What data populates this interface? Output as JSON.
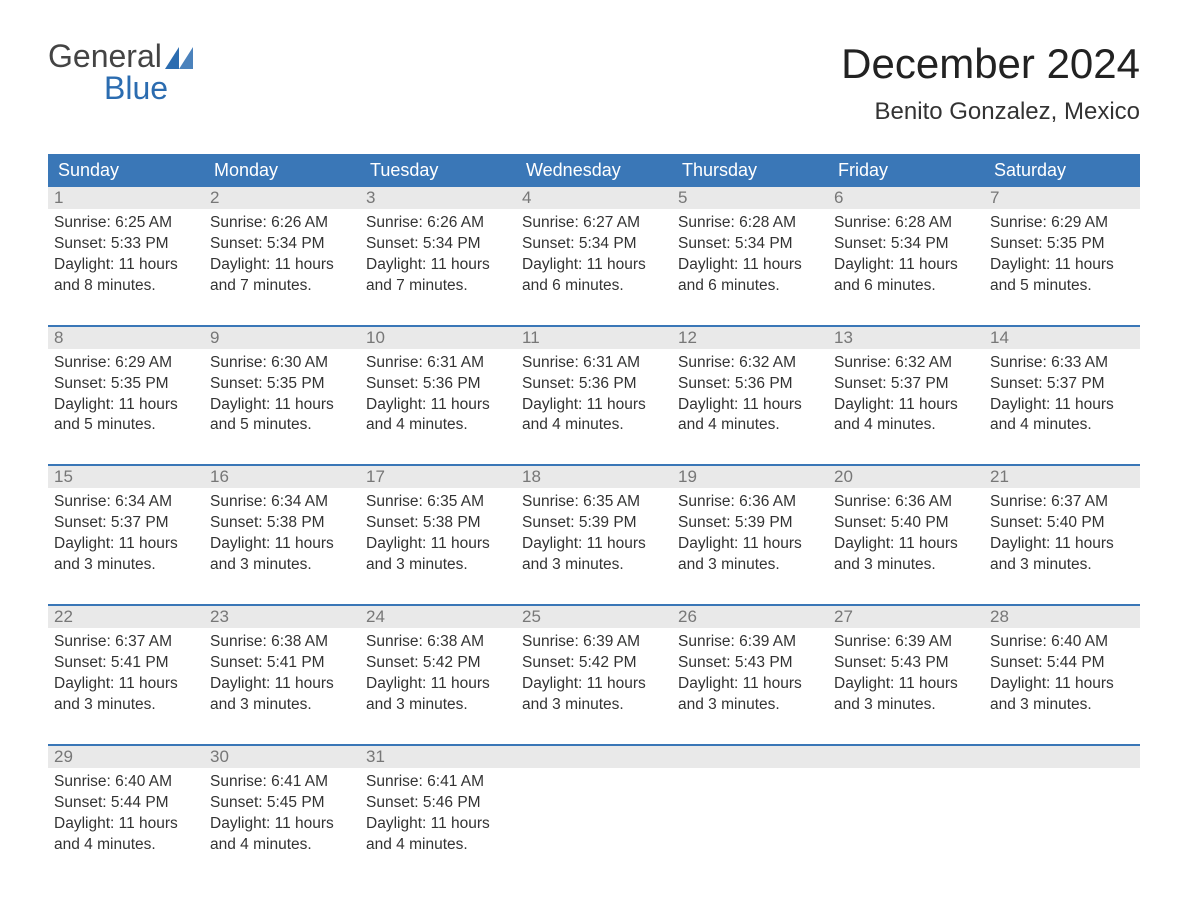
{
  "logo": {
    "text1": "General",
    "text2": "Blue",
    "triangle_color": "#2b6cb0"
  },
  "title": "December 2024",
  "location": "Benito Gonzalez, Mexico",
  "colors": {
    "header_bg": "#3a77b7",
    "header_text": "#ffffff",
    "row_accent": "#3a77b7",
    "daynum_bg": "#e9e9e9",
    "daynum_text": "#777777",
    "body_text": "#333333",
    "background": "#ffffff"
  },
  "typography": {
    "title_fontsize": 42,
    "location_fontsize": 24,
    "header_fontsize": 18,
    "body_fontsize": 15.5,
    "font_family": "Arial"
  },
  "layout": {
    "columns": 7,
    "rows": 5,
    "col_width_pct": 14.28
  },
  "day_headers": [
    "Sunday",
    "Monday",
    "Tuesday",
    "Wednesday",
    "Thursday",
    "Friday",
    "Saturday"
  ],
  "weeks": [
    [
      {
        "num": "1",
        "sunrise": "Sunrise: 6:25 AM",
        "sunset": "Sunset: 5:33 PM",
        "dl1": "Daylight: 11 hours",
        "dl2": "and 8 minutes."
      },
      {
        "num": "2",
        "sunrise": "Sunrise: 6:26 AM",
        "sunset": "Sunset: 5:34 PM",
        "dl1": "Daylight: 11 hours",
        "dl2": "and 7 minutes."
      },
      {
        "num": "3",
        "sunrise": "Sunrise: 6:26 AM",
        "sunset": "Sunset: 5:34 PM",
        "dl1": "Daylight: 11 hours",
        "dl2": "and 7 minutes."
      },
      {
        "num": "4",
        "sunrise": "Sunrise: 6:27 AM",
        "sunset": "Sunset: 5:34 PM",
        "dl1": "Daylight: 11 hours",
        "dl2": "and 6 minutes."
      },
      {
        "num": "5",
        "sunrise": "Sunrise: 6:28 AM",
        "sunset": "Sunset: 5:34 PM",
        "dl1": "Daylight: 11 hours",
        "dl2": "and 6 minutes."
      },
      {
        "num": "6",
        "sunrise": "Sunrise: 6:28 AM",
        "sunset": "Sunset: 5:34 PM",
        "dl1": "Daylight: 11 hours",
        "dl2": "and 6 minutes."
      },
      {
        "num": "7",
        "sunrise": "Sunrise: 6:29 AM",
        "sunset": "Sunset: 5:35 PM",
        "dl1": "Daylight: 11 hours",
        "dl2": "and 5 minutes."
      }
    ],
    [
      {
        "num": "8",
        "sunrise": "Sunrise: 6:29 AM",
        "sunset": "Sunset: 5:35 PM",
        "dl1": "Daylight: 11 hours",
        "dl2": "and 5 minutes."
      },
      {
        "num": "9",
        "sunrise": "Sunrise: 6:30 AM",
        "sunset": "Sunset: 5:35 PM",
        "dl1": "Daylight: 11 hours",
        "dl2": "and 5 minutes."
      },
      {
        "num": "10",
        "sunrise": "Sunrise: 6:31 AM",
        "sunset": "Sunset: 5:36 PM",
        "dl1": "Daylight: 11 hours",
        "dl2": "and 4 minutes."
      },
      {
        "num": "11",
        "sunrise": "Sunrise: 6:31 AM",
        "sunset": "Sunset: 5:36 PM",
        "dl1": "Daylight: 11 hours",
        "dl2": "and 4 minutes."
      },
      {
        "num": "12",
        "sunrise": "Sunrise: 6:32 AM",
        "sunset": "Sunset: 5:36 PM",
        "dl1": "Daylight: 11 hours",
        "dl2": "and 4 minutes."
      },
      {
        "num": "13",
        "sunrise": "Sunrise: 6:32 AM",
        "sunset": "Sunset: 5:37 PM",
        "dl1": "Daylight: 11 hours",
        "dl2": "and 4 minutes."
      },
      {
        "num": "14",
        "sunrise": "Sunrise: 6:33 AM",
        "sunset": "Sunset: 5:37 PM",
        "dl1": "Daylight: 11 hours",
        "dl2": "and 4 minutes."
      }
    ],
    [
      {
        "num": "15",
        "sunrise": "Sunrise: 6:34 AM",
        "sunset": "Sunset: 5:37 PM",
        "dl1": "Daylight: 11 hours",
        "dl2": "and 3 minutes."
      },
      {
        "num": "16",
        "sunrise": "Sunrise: 6:34 AM",
        "sunset": "Sunset: 5:38 PM",
        "dl1": "Daylight: 11 hours",
        "dl2": "and 3 minutes."
      },
      {
        "num": "17",
        "sunrise": "Sunrise: 6:35 AM",
        "sunset": "Sunset: 5:38 PM",
        "dl1": "Daylight: 11 hours",
        "dl2": "and 3 minutes."
      },
      {
        "num": "18",
        "sunrise": "Sunrise: 6:35 AM",
        "sunset": "Sunset: 5:39 PM",
        "dl1": "Daylight: 11 hours",
        "dl2": "and 3 minutes."
      },
      {
        "num": "19",
        "sunrise": "Sunrise: 6:36 AM",
        "sunset": "Sunset: 5:39 PM",
        "dl1": "Daylight: 11 hours",
        "dl2": "and 3 minutes."
      },
      {
        "num": "20",
        "sunrise": "Sunrise: 6:36 AM",
        "sunset": "Sunset: 5:40 PM",
        "dl1": "Daylight: 11 hours",
        "dl2": "and 3 minutes."
      },
      {
        "num": "21",
        "sunrise": "Sunrise: 6:37 AM",
        "sunset": "Sunset: 5:40 PM",
        "dl1": "Daylight: 11 hours",
        "dl2": "and 3 minutes."
      }
    ],
    [
      {
        "num": "22",
        "sunrise": "Sunrise: 6:37 AM",
        "sunset": "Sunset: 5:41 PM",
        "dl1": "Daylight: 11 hours",
        "dl2": "and 3 minutes."
      },
      {
        "num": "23",
        "sunrise": "Sunrise: 6:38 AM",
        "sunset": "Sunset: 5:41 PM",
        "dl1": "Daylight: 11 hours",
        "dl2": "and 3 minutes."
      },
      {
        "num": "24",
        "sunrise": "Sunrise: 6:38 AM",
        "sunset": "Sunset: 5:42 PM",
        "dl1": "Daylight: 11 hours",
        "dl2": "and 3 minutes."
      },
      {
        "num": "25",
        "sunrise": "Sunrise: 6:39 AM",
        "sunset": "Sunset: 5:42 PM",
        "dl1": "Daylight: 11 hours",
        "dl2": "and 3 minutes."
      },
      {
        "num": "26",
        "sunrise": "Sunrise: 6:39 AM",
        "sunset": "Sunset: 5:43 PM",
        "dl1": "Daylight: 11 hours",
        "dl2": "and 3 minutes."
      },
      {
        "num": "27",
        "sunrise": "Sunrise: 6:39 AM",
        "sunset": "Sunset: 5:43 PM",
        "dl1": "Daylight: 11 hours",
        "dl2": "and 3 minutes."
      },
      {
        "num": "28",
        "sunrise": "Sunrise: 6:40 AM",
        "sunset": "Sunset: 5:44 PM",
        "dl1": "Daylight: 11 hours",
        "dl2": "and 3 minutes."
      }
    ],
    [
      {
        "num": "29",
        "sunrise": "Sunrise: 6:40 AM",
        "sunset": "Sunset: 5:44 PM",
        "dl1": "Daylight: 11 hours",
        "dl2": "and 4 minutes."
      },
      {
        "num": "30",
        "sunrise": "Sunrise: 6:41 AM",
        "sunset": "Sunset: 5:45 PM",
        "dl1": "Daylight: 11 hours",
        "dl2": "and 4 minutes."
      },
      {
        "num": "31",
        "sunrise": "Sunrise: 6:41 AM",
        "sunset": "Sunset: 5:46 PM",
        "dl1": "Daylight: 11 hours",
        "dl2": "and 4 minutes."
      },
      null,
      null,
      null,
      null
    ]
  ]
}
